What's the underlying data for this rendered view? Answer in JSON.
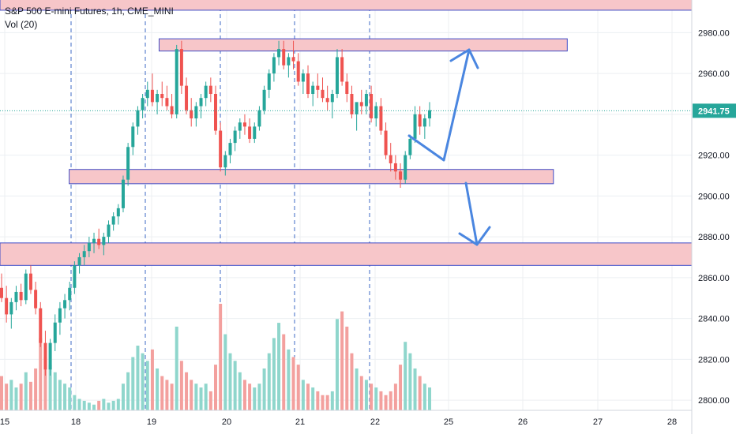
{
  "legend": {
    "symbol_line": "S&P 500 E-mini Futures, 1h, CME_MINI",
    "volume_line": "Vol (20)"
  },
  "price_badge": "2941.75",
  "colors": {
    "up": "#26a69a",
    "down": "#ef5350",
    "vol_up": "#8fd6cc",
    "vol_down": "#f3a09e",
    "zone_fill": "#f7c6c9",
    "zone_border": "#3f4cc7",
    "arrow": "#4a86e0",
    "badge": "#26a69a",
    "grid": "#eceff2",
    "session": "#3d69c4"
  },
  "chart_data": {
    "type": "candlestick",
    "title": "S&P 500 E-mini Futures, 1h, CME_MINI",
    "ylim": [
      2795,
      2996
    ],
    "y_ticks": [
      2800,
      2820,
      2840,
      2860,
      2880,
      2900,
      2920,
      2940,
      2960,
      2980
    ],
    "y_tick_labels": [
      "2800.00",
      "2820.00",
      "2840.00",
      "2860.00",
      "2880.00",
      "2900.00",
      "2920.00",
      "2940.00",
      "2960.00",
      "2980.00"
    ],
    "x_tick_labels": [
      "15",
      "18",
      "19",
      "20",
      "21",
      "22",
      "25",
      "26",
      "27",
      "28"
    ],
    "last_price": 2941.75,
    "volume_indicator": "Vol (20)",
    "candles": [
      [
        2855,
        2862,
        2848,
        2850
      ],
      [
        2850,
        2856,
        2838,
        2842
      ],
      [
        2842,
        2850,
        2835,
        2848
      ],
      [
        2848,
        2856,
        2844,
        2853
      ],
      [
        2853,
        2857,
        2846,
        2849
      ],
      [
        2849,
        2864,
        2847,
        2862
      ],
      [
        2862,
        2866,
        2852,
        2854
      ],
      [
        2854,
        2858,
        2842,
        2845
      ],
      [
        2845,
        2848,
        2826,
        2828
      ],
      [
        2828,
        2834,
        2812,
        2815
      ],
      [
        2815,
        2830,
        2812,
        2828
      ],
      [
        2828,
        2842,
        2824,
        2838
      ],
      [
        2838,
        2848,
        2832,
        2845
      ],
      [
        2845,
        2852,
        2840,
        2849
      ],
      [
        2849,
        2858,
        2844,
        2855
      ],
      [
        2855,
        2868,
        2852,
        2866
      ],
      [
        2866,
        2872,
        2862,
        2870
      ],
      [
        2870,
        2876,
        2866,
        2873
      ],
      [
        2873,
        2880,
        2870,
        2877
      ],
      [
        2877,
        2882,
        2872,
        2879
      ],
      [
        2879,
        2884,
        2874,
        2876
      ],
      [
        2876,
        2882,
        2871,
        2880
      ],
      [
        2880,
        2888,
        2877,
        2886
      ],
      [
        2886,
        2892,
        2883,
        2890
      ],
      [
        2890,
        2896,
        2886,
        2894
      ],
      [
        2894,
        2910,
        2892,
        2908
      ],
      [
        2908,
        2926,
        2905,
        2924
      ],
      [
        2924,
        2936,
        2920,
        2934
      ],
      [
        2934,
        2944,
        2930,
        2942
      ],
      [
        2942,
        2950,
        2938,
        2948
      ],
      [
        2948,
        2956,
        2944,
        2952
      ],
      [
        2952,
        2960,
        2944,
        2946
      ],
      [
        2946,
        2952,
        2940,
        2950
      ],
      [
        2950,
        2956,
        2944,
        2948
      ],
      [
        2948,
        2954,
        2942,
        2944
      ],
      [
        2944,
        2950,
        2938,
        2940
      ],
      [
        2940,
        2974,
        2938,
        2972
      ],
      [
        2972,
        2976,
        2950,
        2954
      ],
      [
        2954,
        2958,
        2940,
        2942
      ],
      [
        2942,
        2948,
        2934,
        2938
      ],
      [
        2938,
        2946,
        2934,
        2944
      ],
      [
        2944,
        2950,
        2938,
        2948
      ],
      [
        2948,
        2956,
        2944,
        2954
      ],
      [
        2954,
        2958,
        2946,
        2950
      ],
      [
        2950,
        2954,
        2930,
        2932
      ],
      [
        2932,
        2936,
        2912,
        2914
      ],
      [
        2914,
        2922,
        2910,
        2920
      ],
      [
        2920,
        2928,
        2916,
        2926
      ],
      [
        2926,
        2934,
        2922,
        2932
      ],
      [
        2932,
        2938,
        2928,
        2936
      ],
      [
        2936,
        2940,
        2930,
        2934
      ],
      [
        2934,
        2938,
        2926,
        2928
      ],
      [
        2928,
        2936,
        2926,
        2934
      ],
      [
        2934,
        2944,
        2932,
        2942
      ],
      [
        2942,
        2954,
        2940,
        2952
      ],
      [
        2952,
        2962,
        2948,
        2960
      ],
      [
        2960,
        2970,
        2956,
        2968
      ],
      [
        2968,
        2976,
        2964,
        2972
      ],
      [
        2972,
        2976,
        2962,
        2964
      ],
      [
        2964,
        2970,
        2958,
        2968
      ],
      [
        2968,
        2976,
        2962,
        2966
      ],
      [
        2966,
        2970,
        2954,
        2956
      ],
      [
        2956,
        2962,
        2950,
        2960
      ],
      [
        2960,
        2964,
        2948,
        2950
      ],
      [
        2950,
        2956,
        2944,
        2954
      ],
      [
        2954,
        2960,
        2948,
        2952
      ],
      [
        2952,
        2958,
        2946,
        2948
      ],
      [
        2948,
        2954,
        2942,
        2946
      ],
      [
        2946,
        2952,
        2938,
        2950
      ],
      [
        2950,
        2972,
        2948,
        2968
      ],
      [
        2968,
        2972,
        2954,
        2956
      ],
      [
        2956,
        2960,
        2946,
        2950
      ],
      [
        2950,
        2954,
        2938,
        2940
      ],
      [
        2940,
        2944,
        2932,
        2946
      ],
      [
        2946,
        2952,
        2940,
        2944
      ],
      [
        2944,
        2952,
        2940,
        2950
      ],
      [
        2950,
        2954,
        2936,
        2938
      ],
      [
        2938,
        2946,
        2934,
        2944
      ],
      [
        2944,
        2948,
        2930,
        2932
      ],
      [
        2932,
        2936,
        2918,
        2920
      ],
      [
        2920,
        2926,
        2912,
        2916
      ],
      [
        2916,
        2920,
        2908,
        2912
      ],
      [
        2912,
        2916,
        2904,
        2908
      ],
      [
        2908,
        2922,
        2906,
        2920
      ],
      [
        2920,
        2930,
        2918,
        2928
      ],
      [
        2928,
        2944,
        2926,
        2940
      ],
      [
        2940,
        2944,
        2930,
        2934
      ],
      [
        2934,
        2940,
        2928,
        2938
      ],
      [
        2938,
        2946,
        2934,
        2942
      ]
    ],
    "volumes": [
      18,
      14,
      16,
      12,
      14,
      20,
      15,
      22,
      38,
      28,
      24,
      20,
      16,
      14,
      12,
      8,
      6,
      5,
      4,
      3,
      5,
      6,
      4,
      5,
      6,
      14,
      20,
      28,
      34,
      30,
      26,
      32,
      22,
      18,
      16,
      14,
      44,
      26,
      20,
      16,
      14,
      12,
      14,
      10,
      24,
      56,
      40,
      30,
      26,
      20,
      16,
      14,
      12,
      14,
      22,
      30,
      38,
      46,
      40,
      32,
      28,
      24,
      16,
      14,
      12,
      10,
      8,
      8,
      10,
      48,
      52,
      44,
      30,
      22,
      18,
      16,
      14,
      12,
      10,
      8,
      10,
      14,
      24,
      36,
      30,
      22,
      18,
      14,
      12
    ]
  },
  "zones": [
    {
      "low": 2991,
      "high": 3000,
      "from": 0,
      "to": 1
    },
    {
      "low": 2971,
      "high": 2977,
      "from": 0.23,
      "to": 0.82
    },
    {
      "low": 2906,
      "high": 2913,
      "from": 0.1,
      "to": 0.8
    },
    {
      "low": 2866,
      "high": 2877,
      "from": 0,
      "to": 1
    }
  ]
}
